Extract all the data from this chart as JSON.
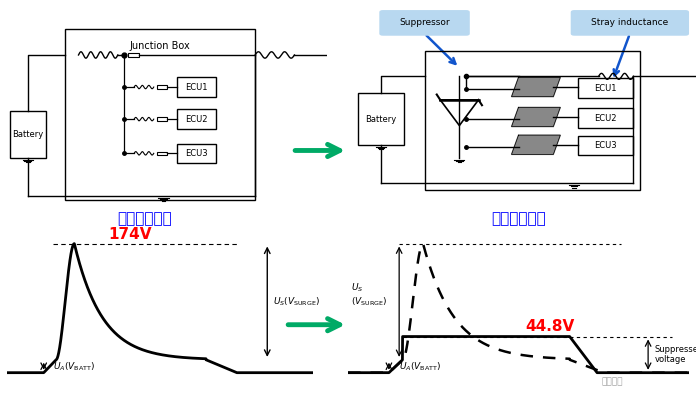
{
  "bg_color": "#ffffff",
  "title_left": "传统电气架构",
  "title_right": "智能电气架构",
  "title_color": "#0000ff",
  "title_fontsize": 11,
  "voltage_left": "174V",
  "voltage_right": "44.8V",
  "voltage_color": "#ff0000",
  "voltage_fontsize": 11,
  "suppressor_label": "Suppressor",
  "stray_label": "Stray inductance",
  "label_color": "#000000",
  "green_arrow_color": "#00aa66",
  "blue_arrow_color": "#1155cc",
  "label_box_color": "#b8d8f0"
}
